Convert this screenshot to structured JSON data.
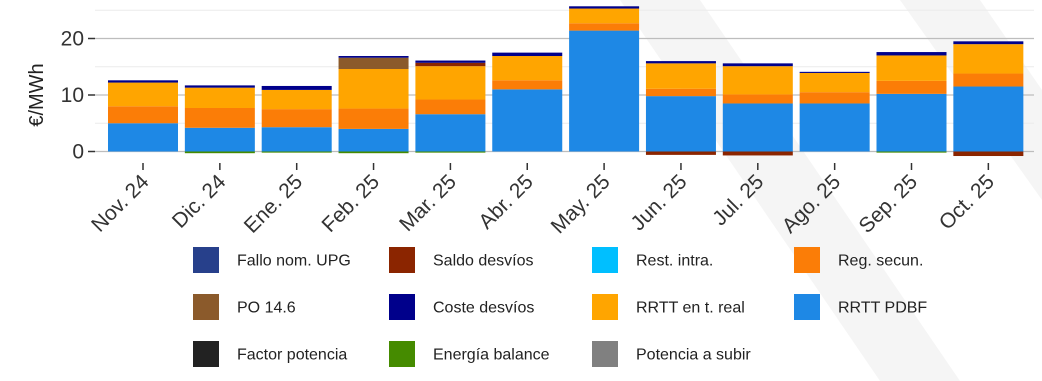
{
  "chart_data": {
    "type": "bar",
    "stacked": true,
    "ylabel": "€/MWh",
    "ylim": [
      -2,
      27
    ],
    "yticks": [
      0,
      10,
      20
    ],
    "grid": true,
    "legend_position": "bottom",
    "categories": [
      "Nov. 24",
      "Dic. 24",
      "Ene. 25",
      "Feb. 25",
      "Mar. 25",
      "Abr. 25",
      "May. 25",
      "Jun. 25",
      "Jul. 25",
      "Ago. 25",
      "Sep. 25",
      "Oct. 25"
    ],
    "series": [
      {
        "name": "RRTT PDBF",
        "color": "#1e88e5",
        "values": [
          5.0,
          4.2,
          4.3,
          4.0,
          6.6,
          11.0,
          21.4,
          9.8,
          8.5,
          8.5,
          10.2,
          11.5
        ]
      },
      {
        "name": "Reg. secun.",
        "color": "#fb7d07",
        "values": [
          3.0,
          3.5,
          3.2,
          3.6,
          2.6,
          1.6,
          1.3,
          1.3,
          1.6,
          2.0,
          2.3,
          2.3
        ]
      },
      {
        "name": "RRTT en t. real",
        "color": "#ffa500",
        "values": [
          4.2,
          3.6,
          3.4,
          7.0,
          5.9,
          4.3,
          2.6,
          4.5,
          5.0,
          3.4,
          4.5,
          5.2
        ]
      },
      {
        "name": "Rest. intra.",
        "color": "#00bfff",
        "values": [
          0,
          0,
          0,
          0,
          0,
          0,
          0,
          0,
          0,
          0,
          0,
          0
        ]
      },
      {
        "name": "Saldo desvíos",
        "color": "#8b2500",
        "values": [
          0,
          0,
          0,
          0,
          0.6,
          0,
          0,
          -0.6,
          -0.7,
          0,
          0,
          -0.8
        ]
      },
      {
        "name": "PO 14.6",
        "color": "#8b5a2b",
        "values": [
          0,
          0,
          0,
          2.0,
          0,
          0,
          0,
          0,
          0,
          0,
          0,
          0
        ]
      },
      {
        "name": "Coste desvíos",
        "color": "#00008b",
        "values": [
          0.4,
          0.4,
          0.7,
          0.3,
          0.4,
          0.6,
          0.4,
          0.4,
          0.5,
          0.2,
          0.6,
          0.5
        ]
      },
      {
        "name": "Energía balance",
        "color": "#458b00",
        "values": [
          0,
          -0.3,
          -0.2,
          -0.3,
          -0.2,
          0,
          0,
          0,
          0,
          0,
          -0.2,
          0
        ]
      },
      {
        "name": "Fallo nom. UPG",
        "color": "#27408b",
        "values": [
          0,
          0,
          0,
          0,
          0,
          0,
          0,
          0,
          0,
          0,
          0,
          0
        ]
      },
      {
        "name": "Factor potencia",
        "color": "#222222",
        "values": [
          0,
          0,
          0,
          0,
          0,
          0,
          0,
          0,
          0,
          0,
          0,
          0
        ]
      },
      {
        "name": "Potencia a subir",
        "color": "#808080",
        "values": [
          0,
          0,
          0,
          0,
          0,
          0,
          0,
          0,
          0,
          0,
          0,
          0
        ]
      }
    ],
    "legend_order": [
      [
        "Fallo nom. UPG",
        "Saldo desvíos",
        "Rest. intra.",
        "Reg. secun."
      ],
      [
        "PO 14.6",
        "Coste desvíos",
        "RRTT en t. real",
        "RRTT PDBF"
      ],
      [
        "Factor potencia",
        "Energía balance",
        "Potencia a subir"
      ]
    ]
  }
}
